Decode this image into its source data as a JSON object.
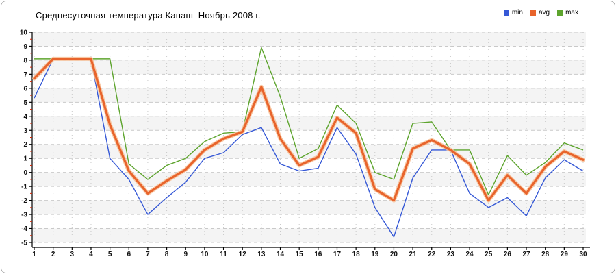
{
  "title": "Среднесуточная температура Канаш  Ноябрь 2008 г.",
  "legend": [
    {
      "label": "min",
      "color": "#3558d6"
    },
    {
      "label": "avg",
      "color": "#e8642c"
    },
    {
      "label": "max",
      "color": "#5da42d"
    }
  ],
  "chart_data": {
    "type": "line",
    "title": "Среднесуточная температура Канаш  Ноябрь 2008 г.",
    "xlabel": "",
    "ylabel": "",
    "x": [
      1,
      2,
      3,
      4,
      5,
      6,
      7,
      8,
      9,
      10,
      11,
      12,
      13,
      14,
      15,
      16,
      17,
      18,
      19,
      20,
      21,
      22,
      23,
      24,
      25,
      26,
      27,
      28,
      29,
      30
    ],
    "series": [
      {
        "name": "min",
        "color": "#3558d6",
        "values": [
          5.3,
          8.1,
          8.1,
          8.1,
          1.0,
          -0.5,
          -3.0,
          -1.8,
          -0.7,
          1.0,
          1.4,
          2.7,
          3.2,
          0.6,
          0.1,
          0.3,
          3.2,
          1.3,
          -2.5,
          -4.6,
          -0.4,
          1.6,
          1.6,
          -1.5,
          -2.5,
          -1.8,
          -3.1,
          -0.4,
          0.9,
          0.1
        ]
      },
      {
        "name": "avg",
        "color": "#e8642c",
        "glow": "#f7bd93",
        "values": [
          6.7,
          8.1,
          8.1,
          8.1,
          3.4,
          0.1,
          -1.5,
          -0.6,
          0.2,
          1.6,
          2.4,
          2.9,
          6.1,
          2.4,
          0.5,
          1.1,
          3.9,
          2.8,
          -1.2,
          -2.0,
          1.7,
          2.3,
          1.6,
          0.6,
          -2.0,
          -0.2,
          -1.5,
          0.4,
          1.5,
          0.9
        ]
      },
      {
        "name": "max",
        "color": "#5da42d",
        "values": [
          8.1,
          8.1,
          8.1,
          8.1,
          8.1,
          0.6,
          -0.5,
          0.5,
          1.0,
          2.2,
          2.8,
          2.9,
          8.9,
          5.4,
          1.0,
          1.7,
          4.8,
          3.5,
          0.0,
          -0.5,
          3.5,
          3.6,
          1.6,
          1.6,
          -1.6,
          1.2,
          -0.2,
          0.7,
          2.1,
          1.6
        ]
      }
    ],
    "ylim": [
      -5,
      10
    ],
    "ytick_step": 1,
    "minor_ytick_step": 0.5,
    "minor_tick_color": "#cc2200",
    "grid": true,
    "grid_color": "#c9c9c9",
    "band_color": "#f4f4f4",
    "legend_position": "top-right"
  }
}
